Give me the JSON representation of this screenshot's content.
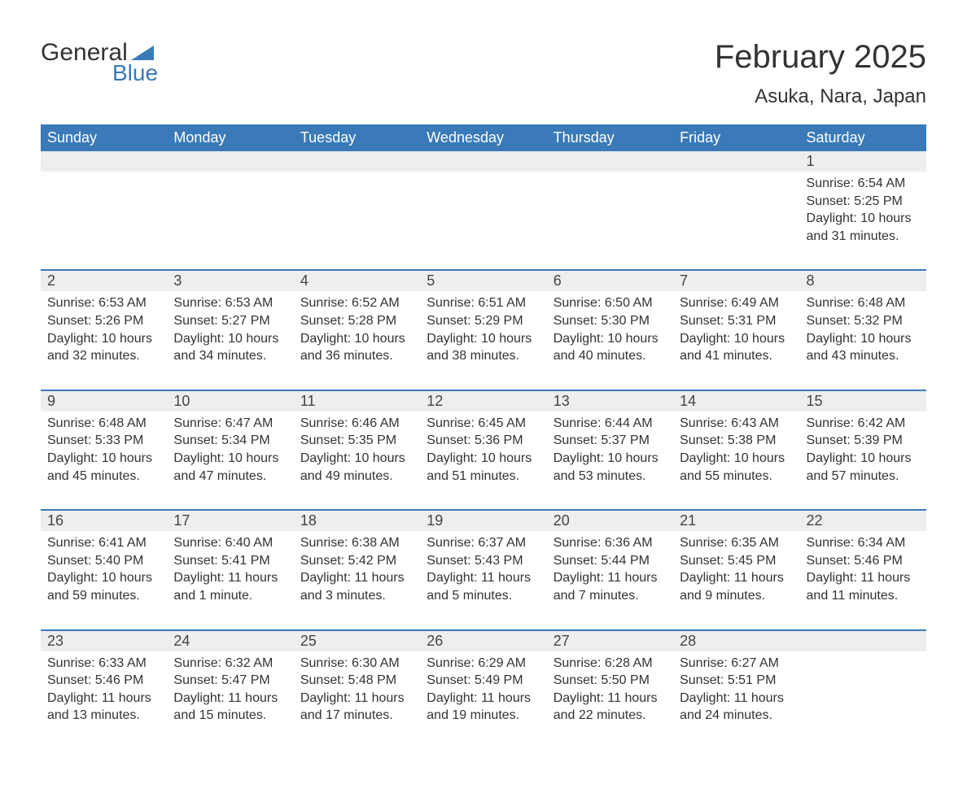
{
  "logo": {
    "general": "General",
    "blue": "Blue"
  },
  "title": "February 2025",
  "location": "Asuka, Nara, Japan",
  "colors": {
    "header_bg": "#3a7ab8",
    "header_text": "#ffffff",
    "daynum_bg": "#eeeeee",
    "border": "#3a7ab8",
    "text": "#333333",
    "logo_blue": "#3a7ab8"
  },
  "day_headers": [
    "Sunday",
    "Monday",
    "Tuesday",
    "Wednesday",
    "Thursday",
    "Friday",
    "Saturday"
  ],
  "weeks": [
    [
      null,
      null,
      null,
      null,
      null,
      null,
      {
        "day": "1",
        "sunrise": "Sunrise: 6:54 AM",
        "sunset": "Sunset: 5:25 PM",
        "daylight": "Daylight: 10 hours and 31 minutes."
      }
    ],
    [
      {
        "day": "2",
        "sunrise": "Sunrise: 6:53 AM",
        "sunset": "Sunset: 5:26 PM",
        "daylight": "Daylight: 10 hours and 32 minutes."
      },
      {
        "day": "3",
        "sunrise": "Sunrise: 6:53 AM",
        "sunset": "Sunset: 5:27 PM",
        "daylight": "Daylight: 10 hours and 34 minutes."
      },
      {
        "day": "4",
        "sunrise": "Sunrise: 6:52 AM",
        "sunset": "Sunset: 5:28 PM",
        "daylight": "Daylight: 10 hours and 36 minutes."
      },
      {
        "day": "5",
        "sunrise": "Sunrise: 6:51 AM",
        "sunset": "Sunset: 5:29 PM",
        "daylight": "Daylight: 10 hours and 38 minutes."
      },
      {
        "day": "6",
        "sunrise": "Sunrise: 6:50 AM",
        "sunset": "Sunset: 5:30 PM",
        "daylight": "Daylight: 10 hours and 40 minutes."
      },
      {
        "day": "7",
        "sunrise": "Sunrise: 6:49 AM",
        "sunset": "Sunset: 5:31 PM",
        "daylight": "Daylight: 10 hours and 41 minutes."
      },
      {
        "day": "8",
        "sunrise": "Sunrise: 6:48 AM",
        "sunset": "Sunset: 5:32 PM",
        "daylight": "Daylight: 10 hours and 43 minutes."
      }
    ],
    [
      {
        "day": "9",
        "sunrise": "Sunrise: 6:48 AM",
        "sunset": "Sunset: 5:33 PM",
        "daylight": "Daylight: 10 hours and 45 minutes."
      },
      {
        "day": "10",
        "sunrise": "Sunrise: 6:47 AM",
        "sunset": "Sunset: 5:34 PM",
        "daylight": "Daylight: 10 hours and 47 minutes."
      },
      {
        "day": "11",
        "sunrise": "Sunrise: 6:46 AM",
        "sunset": "Sunset: 5:35 PM",
        "daylight": "Daylight: 10 hours and 49 minutes."
      },
      {
        "day": "12",
        "sunrise": "Sunrise: 6:45 AM",
        "sunset": "Sunset: 5:36 PM",
        "daylight": "Daylight: 10 hours and 51 minutes."
      },
      {
        "day": "13",
        "sunrise": "Sunrise: 6:44 AM",
        "sunset": "Sunset: 5:37 PM",
        "daylight": "Daylight: 10 hours and 53 minutes."
      },
      {
        "day": "14",
        "sunrise": "Sunrise: 6:43 AM",
        "sunset": "Sunset: 5:38 PM",
        "daylight": "Daylight: 10 hours and 55 minutes."
      },
      {
        "day": "15",
        "sunrise": "Sunrise: 6:42 AM",
        "sunset": "Sunset: 5:39 PM",
        "daylight": "Daylight: 10 hours and 57 minutes."
      }
    ],
    [
      {
        "day": "16",
        "sunrise": "Sunrise: 6:41 AM",
        "sunset": "Sunset: 5:40 PM",
        "daylight": "Daylight: 10 hours and 59 minutes."
      },
      {
        "day": "17",
        "sunrise": "Sunrise: 6:40 AM",
        "sunset": "Sunset: 5:41 PM",
        "daylight": "Daylight: 11 hours and 1 minute."
      },
      {
        "day": "18",
        "sunrise": "Sunrise: 6:38 AM",
        "sunset": "Sunset: 5:42 PM",
        "daylight": "Daylight: 11 hours and 3 minutes."
      },
      {
        "day": "19",
        "sunrise": "Sunrise: 6:37 AM",
        "sunset": "Sunset: 5:43 PM",
        "daylight": "Daylight: 11 hours and 5 minutes."
      },
      {
        "day": "20",
        "sunrise": "Sunrise: 6:36 AM",
        "sunset": "Sunset: 5:44 PM",
        "daylight": "Daylight: 11 hours and 7 minutes."
      },
      {
        "day": "21",
        "sunrise": "Sunrise: 6:35 AM",
        "sunset": "Sunset: 5:45 PM",
        "daylight": "Daylight: 11 hours and 9 minutes."
      },
      {
        "day": "22",
        "sunrise": "Sunrise: 6:34 AM",
        "sunset": "Sunset: 5:46 PM",
        "daylight": "Daylight: 11 hours and 11 minutes."
      }
    ],
    [
      {
        "day": "23",
        "sunrise": "Sunrise: 6:33 AM",
        "sunset": "Sunset: 5:46 PM",
        "daylight": "Daylight: 11 hours and 13 minutes."
      },
      {
        "day": "24",
        "sunrise": "Sunrise: 6:32 AM",
        "sunset": "Sunset: 5:47 PM",
        "daylight": "Daylight: 11 hours and 15 minutes."
      },
      {
        "day": "25",
        "sunrise": "Sunrise: 6:30 AM",
        "sunset": "Sunset: 5:48 PM",
        "daylight": "Daylight: 11 hours and 17 minutes."
      },
      {
        "day": "26",
        "sunrise": "Sunrise: 6:29 AM",
        "sunset": "Sunset: 5:49 PM",
        "daylight": "Daylight: 11 hours and 19 minutes."
      },
      {
        "day": "27",
        "sunrise": "Sunrise: 6:28 AM",
        "sunset": "Sunset: 5:50 PM",
        "daylight": "Daylight: 11 hours and 22 minutes."
      },
      {
        "day": "28",
        "sunrise": "Sunrise: 6:27 AM",
        "sunset": "Sunset: 5:51 PM",
        "daylight": "Daylight: 11 hours and 24 minutes."
      },
      null
    ]
  ]
}
